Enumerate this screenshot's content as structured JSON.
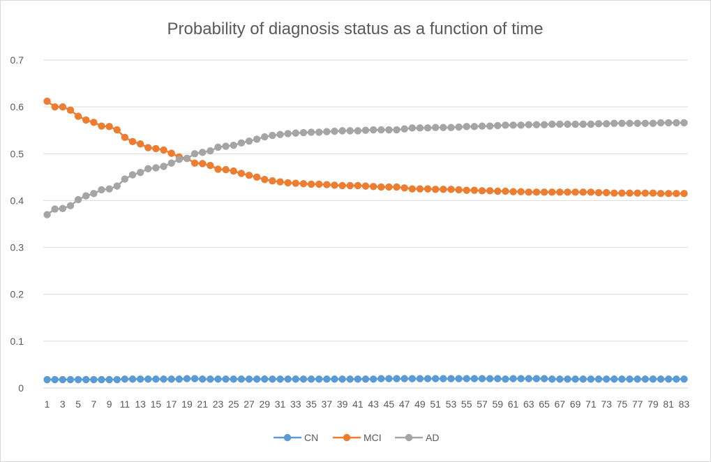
{
  "chart_data": {
    "type": "line",
    "title": "Probability of diagnosis status as a function of time",
    "xlabel": "",
    "ylabel": "",
    "ylim": [
      0,
      0.7
    ],
    "y_ticks": [
      "0",
      "0.1",
      "0.2",
      "0.3",
      "0.4",
      "0.5",
      "0.6",
      "0.7"
    ],
    "x": [
      1,
      2,
      3,
      4,
      5,
      6,
      7,
      8,
      9,
      10,
      11,
      12,
      13,
      14,
      15,
      16,
      17,
      18,
      19,
      20,
      21,
      22,
      23,
      24,
      25,
      26,
      27,
      28,
      29,
      30,
      31,
      32,
      33,
      34,
      35,
      36,
      37,
      38,
      39,
      40,
      41,
      42,
      43,
      44,
      45,
      46,
      47,
      48,
      49,
      50,
      51,
      52,
      53,
      54,
      55,
      56,
      57,
      58,
      59,
      60,
      61,
      62,
      63,
      64,
      65,
      66,
      67,
      68,
      69,
      70,
      71,
      72,
      73,
      74,
      75,
      76,
      77,
      78,
      79,
      80,
      81,
      82,
      83
    ],
    "x_tick_labels": [
      "1",
      "3",
      "5",
      "7",
      "9",
      "11",
      "13",
      "15",
      "17",
      "19",
      "21",
      "23",
      "25",
      "27",
      "29",
      "31",
      "33",
      "35",
      "37",
      "39",
      "41",
      "43",
      "45",
      "47",
      "49",
      "51",
      "53",
      "55",
      "57",
      "59",
      "61",
      "63",
      "65",
      "67",
      "69",
      "71",
      "73",
      "75",
      "77",
      "79",
      "81",
      "83"
    ],
    "grid": "horizontal",
    "legend_position": "bottom",
    "series": [
      {
        "name": "CN",
        "color": "#5b9bd5",
        "values": [
          0.018,
          0.018,
          0.018,
          0.018,
          0.018,
          0.018,
          0.018,
          0.018,
          0.018,
          0.018,
          0.019,
          0.019,
          0.019,
          0.019,
          0.019,
          0.019,
          0.019,
          0.019,
          0.02,
          0.02,
          0.019,
          0.019,
          0.019,
          0.019,
          0.019,
          0.019,
          0.019,
          0.019,
          0.019,
          0.019,
          0.019,
          0.019,
          0.019,
          0.019,
          0.019,
          0.019,
          0.019,
          0.019,
          0.019,
          0.019,
          0.019,
          0.019,
          0.019,
          0.02,
          0.02,
          0.02,
          0.02,
          0.02,
          0.02,
          0.02,
          0.02,
          0.02,
          0.02,
          0.02,
          0.02,
          0.02,
          0.02,
          0.02,
          0.02,
          0.019,
          0.02,
          0.02,
          0.02,
          0.02,
          0.02,
          0.019,
          0.019,
          0.019,
          0.019,
          0.019,
          0.019,
          0.019,
          0.019,
          0.019,
          0.019,
          0.019,
          0.019,
          0.019,
          0.019,
          0.019,
          0.019,
          0.019,
          0.019
        ]
      },
      {
        "name": "MCI",
        "color": "#ed7d31",
        "values": [
          0.612,
          0.6,
          0.6,
          0.593,
          0.58,
          0.572,
          0.567,
          0.559,
          0.558,
          0.551,
          0.535,
          0.526,
          0.521,
          0.513,
          0.511,
          0.508,
          0.501,
          0.493,
          0.49,
          0.48,
          0.479,
          0.475,
          0.467,
          0.466,
          0.463,
          0.458,
          0.454,
          0.45,
          0.445,
          0.442,
          0.44,
          0.438,
          0.437,
          0.436,
          0.435,
          0.435,
          0.434,
          0.433,
          0.432,
          0.432,
          0.432,
          0.431,
          0.43,
          0.429,
          0.429,
          0.429,
          0.427,
          0.425,
          0.425,
          0.425,
          0.424,
          0.424,
          0.424,
          0.423,
          0.422,
          0.422,
          0.421,
          0.421,
          0.42,
          0.42,
          0.419,
          0.419,
          0.418,
          0.418,
          0.418,
          0.418,
          0.418,
          0.418,
          0.418,
          0.418,
          0.418,
          0.417,
          0.417,
          0.416,
          0.416,
          0.416,
          0.416,
          0.416,
          0.416,
          0.415,
          0.415,
          0.415,
          0.415
        ]
      },
      {
        "name": "AD",
        "color": "#a5a5a5",
        "values": [
          0.37,
          0.382,
          0.383,
          0.389,
          0.402,
          0.41,
          0.415,
          0.423,
          0.425,
          0.431,
          0.446,
          0.455,
          0.46,
          0.468,
          0.47,
          0.473,
          0.48,
          0.488,
          0.49,
          0.5,
          0.503,
          0.506,
          0.514,
          0.516,
          0.518,
          0.523,
          0.527,
          0.531,
          0.536,
          0.539,
          0.541,
          0.543,
          0.544,
          0.545,
          0.546,
          0.546,
          0.547,
          0.548,
          0.549,
          0.549,
          0.549,
          0.55,
          0.551,
          0.551,
          0.551,
          0.551,
          0.553,
          0.555,
          0.555,
          0.555,
          0.556,
          0.556,
          0.556,
          0.557,
          0.558,
          0.558,
          0.559,
          0.559,
          0.56,
          0.561,
          0.561,
          0.561,
          0.562,
          0.562,
          0.562,
          0.563,
          0.563,
          0.563,
          0.563,
          0.563,
          0.563,
          0.564,
          0.564,
          0.565,
          0.565,
          0.565,
          0.565,
          0.565,
          0.565,
          0.566,
          0.566,
          0.566,
          0.566
        ]
      }
    ]
  }
}
